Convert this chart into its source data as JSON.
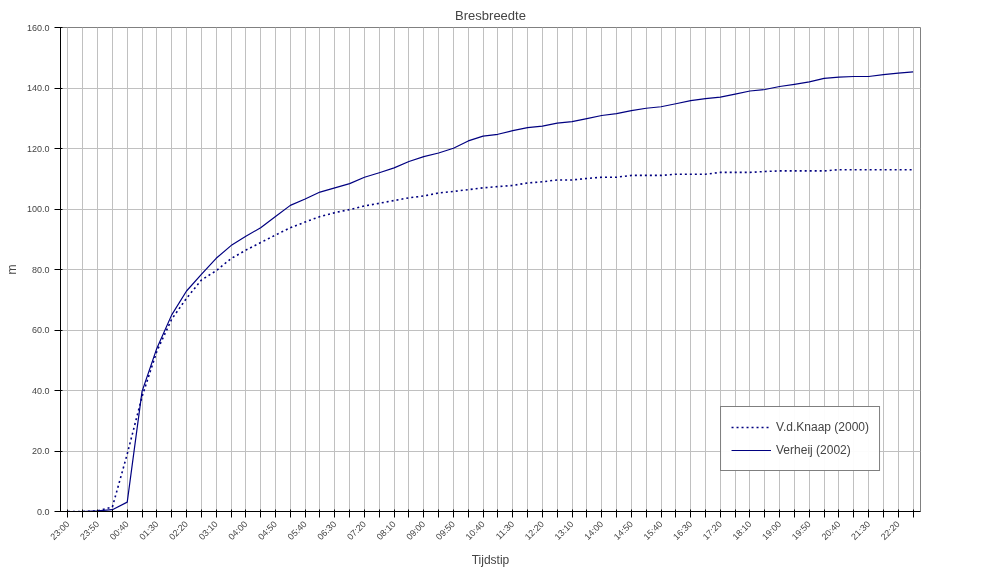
{
  "chart_data": {
    "type": "line",
    "title": "Bresbreedte",
    "xlabel": "Tijdstip",
    "ylabel": "m",
    "categories": [
      "23:00",
      null,
      "23:50",
      null,
      "00:40",
      null,
      "01:30",
      null,
      "02:20",
      null,
      "03:10",
      null,
      "04:00",
      null,
      "04:50",
      null,
      "05:40",
      null,
      "06:30",
      null,
      "07:20",
      null,
      "08:10",
      null,
      "09:00",
      null,
      "09:50",
      null,
      "10:40",
      null,
      "11:30",
      null,
      "12:20",
      null,
      "13:10",
      null,
      "14:00",
      null,
      "14:50",
      null,
      "15:40",
      null,
      "16:30",
      null,
      "17:20",
      null,
      "18:10",
      null,
      "19:00",
      null,
      "19:50",
      null,
      "20:40",
      null,
      "21:30",
      null,
      "22:20",
      null
    ],
    "series": [
      {
        "name": "V.d.Knaap (2000)",
        "color": "#000080",
        "line_style": "dotted",
        "values": [
          0,
          0,
          0.2,
          1.5,
          19,
          38,
          53,
          63.6,
          70.5,
          76.5,
          79.6,
          83.6,
          86.4,
          88.9,
          91.4,
          93.8,
          95.7,
          97.5,
          98.8,
          99.8,
          101,
          101.9,
          102.8,
          103.7,
          104.3,
          105.3,
          105.8,
          106.4,
          107,
          107.4,
          107.8,
          108.6,
          109,
          109.6,
          109.6,
          110.1,
          110.5,
          110.5,
          111.1,
          111.1,
          111.1,
          111.5,
          111.5,
          111.5,
          112.1,
          112.1,
          112.1,
          112.4,
          112.6,
          112.6,
          112.6,
          112.6,
          113,
          113,
          113,
          113,
          113,
          113
        ]
      },
      {
        "name": "Verheij (2002)",
        "color": "#000080",
        "line_style": "solid",
        "values": [
          0,
          0,
          0.2,
          0.6,
          3.1,
          39.7,
          54,
          65,
          72.9,
          78.4,
          83.7,
          87.9,
          91,
          93.8,
          97.5,
          101.2,
          103.3,
          105.6,
          107,
          108.4,
          110.5,
          112,
          113.6,
          115.7,
          117.3,
          118.5,
          120.1,
          122.5,
          124.1,
          124.7,
          125.9,
          126.9,
          127.4,
          128.4,
          128.9,
          129.9,
          130.9,
          131.5,
          132.5,
          133.3,
          133.8,
          134.8,
          135.8,
          136.5,
          137,
          138,
          139,
          139.5,
          140.5,
          141.2,
          142,
          143.2,
          143.6,
          143.8,
          143.8,
          144.4,
          144.9,
          145.3
        ]
      }
    ],
    "ylim": [
      0,
      160
    ],
    "yticks": [
      {
        "value": 0,
        "label": "0.0"
      },
      {
        "value": 20,
        "label": "20.0"
      },
      {
        "value": 40,
        "label": "40.0"
      },
      {
        "value": 60,
        "label": "60.0"
      },
      {
        "value": 80,
        "label": "80.0"
      },
      {
        "value": 100,
        "label": "100.0"
      },
      {
        "value": 120,
        "label": "120.0"
      },
      {
        "value": 140,
        "label": "140.0"
      },
      {
        "value": 160,
        "label": "160.0"
      }
    ],
    "grid": true,
    "legend": "bottom right",
    "marker": "none"
  }
}
